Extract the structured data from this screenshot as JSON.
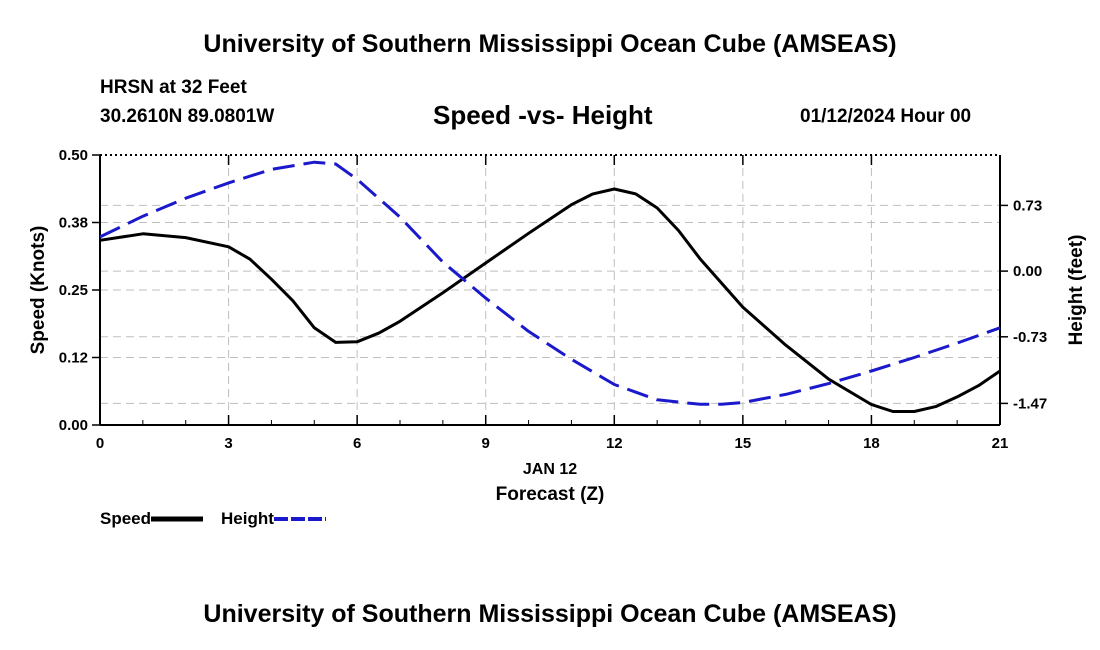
{
  "header": {
    "title": "University of Southern Mississippi Ocean Cube (AMSEAS)",
    "station": "HRSN at 32 Feet",
    "coordinates": "30.2610N  89.0801W",
    "chart_title": "Speed -vs- Height",
    "run_time": "01/12/2024 Hour 00"
  },
  "footer": {
    "title": "University of Southern Mississippi Ocean Cube (AMSEAS)"
  },
  "legend": {
    "speed_label": "Speed",
    "height_label": "Height"
  },
  "colors": {
    "speed": "#000000",
    "height": "#1a1acc",
    "grid": "#bfbfbf"
  },
  "chart_data": {
    "type": "line",
    "title": "Speed -vs- Height",
    "xlabel": "Forecast (Z)",
    "xlabel_date": "JAN 12",
    "ylabel_left": "Speed (Knots)",
    "ylabel_right": "Height (feet)",
    "xlim": [
      0,
      21
    ],
    "ylim_left": [
      0,
      0.5
    ],
    "ylim_right": [
      -1.71,
      1.29
    ],
    "x_ticks": [
      0,
      3,
      6,
      9,
      12,
      15,
      18,
      21
    ],
    "x_tick_labels": [
      "0",
      "3",
      "6",
      "9",
      "12",
      "15",
      "18",
      "21"
    ],
    "y_left_ticks": [
      0,
      0.125,
      0.25,
      0.375,
      0.5
    ],
    "y_left_tick_labels": [
      "0.00",
      "0.12",
      "0.25",
      "0.38",
      "0.50"
    ],
    "y_right_ticks": [
      0.73,
      0,
      -0.73,
      -1.47
    ],
    "y_right_tick_labels": [
      "0.73",
      "0.00",
      "-0.73",
      "-1.47"
    ],
    "grid": true,
    "series": [
      {
        "name": "Speed",
        "axis": "left",
        "style": "solid",
        "x": [
          0,
          1,
          2,
          3,
          3.5,
          4,
          4.5,
          5,
          5.5,
          6,
          6.5,
          7,
          8,
          9,
          10,
          11,
          11.5,
          12,
          12.5,
          13,
          13.5,
          14,
          15,
          16,
          17,
          18,
          18.5,
          19,
          19.5,
          20,
          20.5,
          21
        ],
        "y": [
          0.342,
          0.354,
          0.347,
          0.33,
          0.307,
          0.27,
          0.23,
          0.18,
          0.153,
          0.154,
          0.17,
          0.192,
          0.245,
          0.3,
          0.355,
          0.408,
          0.428,
          0.437,
          0.428,
          0.402,
          0.36,
          0.308,
          0.218,
          0.148,
          0.085,
          0.038,
          0.025,
          0.025,
          0.034,
          0.052,
          0.073,
          0.1
        ]
      },
      {
        "name": "Height",
        "axis": "right",
        "style": "dashed",
        "x": [
          0,
          1,
          2,
          3,
          4,
          5,
          5.5,
          6,
          7,
          8,
          9,
          10,
          11,
          12,
          13,
          14,
          14.5,
          15,
          16,
          17,
          18,
          19,
          20,
          21
        ],
        "y": [
          0.38,
          0.61,
          0.81,
          0.98,
          1.13,
          1.21,
          1.19,
          1.02,
          0.6,
          0.1,
          -0.3,
          -0.67,
          -0.98,
          -1.26,
          -1.43,
          -1.48,
          -1.48,
          -1.46,
          -1.37,
          -1.25,
          -1.11,
          -0.96,
          -0.8,
          -0.63
        ]
      }
    ]
  }
}
